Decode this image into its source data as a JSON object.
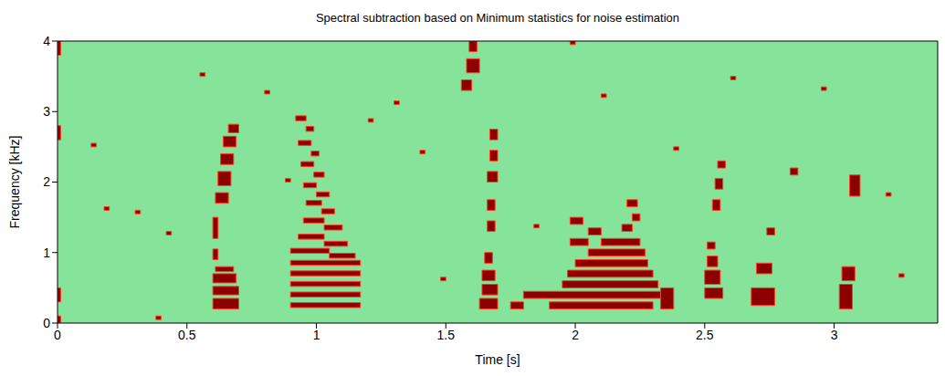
{
  "chart_data": {
    "type": "heatmap",
    "title": "Spectral subtraction based on Minimum statistics for  noise estimation",
    "xlabel": "Time [s]",
    "ylabel": "Frequency [kHz]",
    "xlim": [
      0,
      3.4
    ],
    "ylim": [
      0,
      4
    ],
    "xticks": [
      0,
      0.5,
      1,
      1.5,
      2,
      2.5,
      3
    ],
    "yticks": [
      0,
      1,
      2,
      3,
      4
    ],
    "color": "#8b0000",
    "cells": [
      [
        0,
        0.012,
        2.6,
        2.8
      ],
      [
        0,
        0.012,
        0.3,
        0.5
      ],
      [
        0,
        0.012,
        0.0,
        0.1
      ],
      [
        0,
        0.012,
        3.8,
        4.0
      ],
      [
        0.6,
        0.7,
        0.2,
        0.35
      ],
      [
        0.6,
        0.7,
        0.4,
        0.52
      ],
      [
        0.6,
        0.69,
        0.57,
        0.7
      ],
      [
        0.61,
        0.68,
        0.73,
        0.8
      ],
      [
        0.6,
        0.62,
        0.9,
        1.05
      ],
      [
        0.6,
        0.62,
        1.2,
        1.5
      ],
      [
        0.61,
        0.66,
        1.7,
        1.85
      ],
      [
        0.62,
        0.67,
        1.95,
        2.15
      ],
      [
        0.63,
        0.68,
        2.25,
        2.4
      ],
      [
        0.64,
        0.69,
        2.5,
        2.65
      ],
      [
        0.66,
        0.7,
        2.7,
        2.82
      ],
      [
        0.92,
        0.96,
        2.87,
        2.94
      ],
      [
        0.96,
        0.99,
        2.72,
        2.79
      ],
      [
        0.93,
        0.98,
        2.52,
        2.59
      ],
      [
        0.98,
        1.01,
        2.37,
        2.44
      ],
      [
        0.94,
        0.99,
        2.22,
        2.29
      ],
      [
        0.99,
        1.03,
        2.07,
        2.14
      ],
      [
        0.95,
        1.0,
        1.92,
        1.99
      ],
      [
        1.0,
        1.05,
        1.79,
        1.86
      ],
      [
        0.96,
        1.02,
        1.67,
        1.74
      ],
      [
        1.02,
        1.07,
        1.55,
        1.62
      ],
      [
        0.95,
        1.03,
        1.42,
        1.49
      ],
      [
        1.03,
        1.1,
        1.32,
        1.39
      ],
      [
        0.93,
        1.03,
        1.19,
        1.26
      ],
      [
        1.03,
        1.12,
        1.09,
        1.16
      ],
      [
        0.9,
        1.05,
        0.99,
        1.06
      ],
      [
        1.05,
        1.15,
        0.92,
        0.99
      ],
      [
        0.9,
        1.17,
        0.82,
        0.89
      ],
      [
        0.9,
        1.17,
        0.67,
        0.74
      ],
      [
        0.9,
        1.17,
        0.52,
        0.59
      ],
      [
        0.9,
        1.17,
        0.37,
        0.44
      ],
      [
        0.9,
        1.17,
        0.22,
        0.29
      ],
      [
        1.63,
        1.7,
        0.2,
        0.35
      ],
      [
        1.64,
        1.7,
        0.4,
        0.55
      ],
      [
        1.64,
        1.69,
        0.6,
        0.75
      ],
      [
        1.65,
        1.68,
        0.85,
        1.0
      ],
      [
        1.66,
        1.69,
        1.3,
        1.45
      ],
      [
        1.66,
        1.69,
        1.6,
        1.75
      ],
      [
        1.66,
        1.7,
        2.0,
        2.15
      ],
      [
        1.67,
        1.7,
        2.3,
        2.45
      ],
      [
        1.67,
        1.7,
        2.6,
        2.75
      ],
      [
        1.58,
        1.63,
        3.55,
        3.75
      ],
      [
        1.59,
        1.62,
        3.85,
        4.0
      ],
      [
        1.56,
        1.6,
        3.3,
        3.45
      ],
      [
        1.8,
        2.33,
        0.35,
        0.45
      ],
      [
        1.75,
        1.8,
        0.2,
        0.3
      ],
      [
        1.9,
        2.3,
        0.2,
        0.3
      ],
      [
        1.95,
        2.32,
        0.5,
        0.6
      ],
      [
        1.97,
        2.3,
        0.65,
        0.75
      ],
      [
        2.0,
        2.28,
        0.8,
        0.9
      ],
      [
        2.05,
        2.27,
        0.95,
        1.05
      ],
      [
        1.98,
        2.05,
        1.1,
        1.2
      ],
      [
        2.1,
        2.25,
        1.1,
        1.2
      ],
      [
        1.98,
        2.03,
        1.4,
        1.5
      ],
      [
        2.05,
        2.1,
        1.25,
        1.35
      ],
      [
        2.18,
        2.22,
        1.3,
        1.4
      ],
      [
        2.22,
        2.25,
        1.45,
        1.55
      ],
      [
        2.33,
        2.38,
        0.2,
        0.5
      ],
      [
        2.2,
        2.24,
        1.65,
        1.75
      ],
      [
        2.5,
        2.57,
        0.35,
        0.5
      ],
      [
        2.5,
        2.56,
        0.55,
        0.75
      ],
      [
        2.51,
        2.55,
        0.8,
        0.95
      ],
      [
        2.51,
        2.54,
        1.05,
        1.15
      ],
      [
        2.53,
        2.56,
        1.6,
        1.75
      ],
      [
        2.54,
        2.57,
        1.9,
        2.05
      ],
      [
        2.55,
        2.58,
        2.2,
        2.3
      ],
      [
        2.68,
        2.77,
        0.25,
        0.5
      ],
      [
        2.7,
        2.76,
        0.7,
        0.85
      ],
      [
        2.74,
        2.77,
        1.25,
        1.35
      ],
      [
        2.83,
        2.86,
        2.1,
        2.2
      ],
      [
        3.02,
        3.07,
        0.2,
        0.55
      ],
      [
        3.03,
        3.08,
        0.6,
        0.8
      ],
      [
        3.06,
        3.1,
        1.8,
        2.1
      ],
      [
        0.18,
        0.2,
        1.6,
        1.65
      ],
      [
        0.3,
        0.32,
        1.55,
        1.6
      ],
      [
        0.42,
        0.44,
        1.25,
        1.3
      ],
      [
        0.13,
        0.15,
        2.5,
        2.55
      ],
      [
        0.55,
        0.57,
        3.5,
        3.55
      ],
      [
        0.8,
        0.82,
        3.25,
        3.3
      ],
      [
        1.2,
        1.22,
        2.85,
        2.9
      ],
      [
        1.48,
        1.5,
        0.6,
        0.65
      ],
      [
        1.84,
        1.86,
        1.35,
        1.4
      ],
      [
        1.98,
        2.0,
        3.95,
        4.0
      ],
      [
        2.38,
        2.4,
        2.45,
        2.5
      ],
      [
        2.6,
        2.62,
        3.45,
        3.5
      ],
      [
        2.95,
        2.97,
        3.3,
        3.35
      ],
      [
        3.2,
        3.22,
        1.8,
        1.85
      ],
      [
        3.25,
        3.27,
        0.65,
        0.7
      ],
      [
        0.88,
        0.9,
        2.0,
        2.05
      ],
      [
        0.38,
        0.4,
        0.05,
        0.1
      ],
      [
        1.4,
        1.42,
        2.4,
        2.45
      ],
      [
        1.3,
        1.32,
        3.1,
        3.15
      ],
      [
        2.1,
        2.12,
        3.2,
        3.25
      ]
    ]
  }
}
